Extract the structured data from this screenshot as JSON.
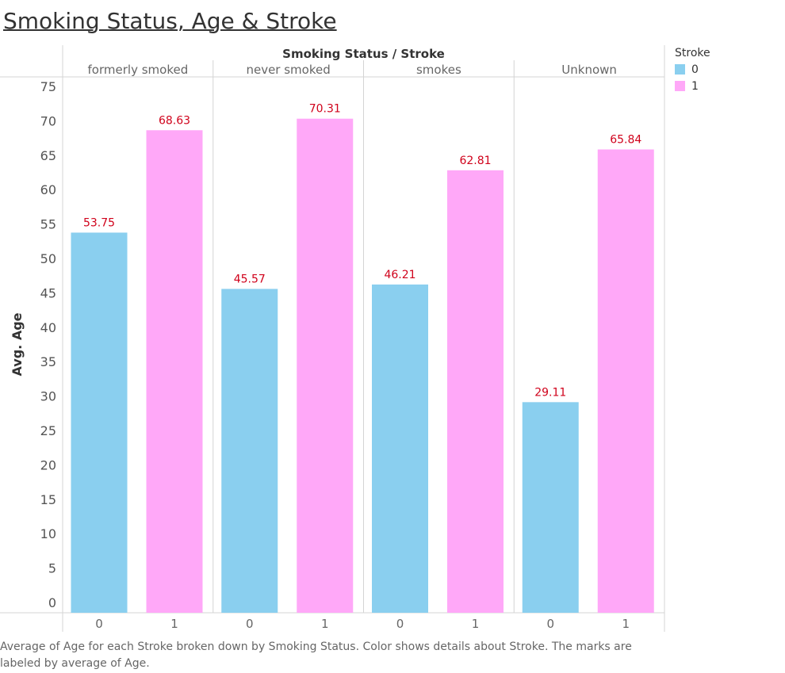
{
  "title": "Smoking Status, Age & Stroke",
  "caption": "Average of Age for each Stroke broken down by Smoking Status.  Color shows details about Stroke.  The marks are labeled by average of Age.",
  "legend": {
    "title": "Stroke",
    "items": [
      {
        "label": "0",
        "color": "#8ACFEF"
      },
      {
        "label": "1",
        "color": "#FFA8F8"
      }
    ]
  },
  "chart_data": {
    "type": "bar",
    "title": "Smoking Status, Age & Stroke",
    "column_header": "Smoking Status  /  Stroke",
    "ylabel": "Avg. Age",
    "ylim": [
      0,
      75
    ],
    "yticks": [
      0,
      5,
      10,
      15,
      20,
      25,
      30,
      35,
      40,
      45,
      50,
      55,
      60,
      65,
      70,
      75
    ],
    "groups": [
      "formerly smoked",
      "never smoked",
      "smokes",
      "Unknown"
    ],
    "sub_categories": [
      "0",
      "1"
    ],
    "series": [
      {
        "name": "0",
        "color": "#8ACFEF",
        "values": [
          53.75,
          45.57,
          46.21,
          29.11
        ]
      },
      {
        "name": "1",
        "color": "#FFA8F8",
        "values": [
          68.63,
          70.31,
          62.81,
          65.84
        ]
      }
    ],
    "value_label_color": "#D0021B",
    "legend_position": "right",
    "grid": false
  }
}
